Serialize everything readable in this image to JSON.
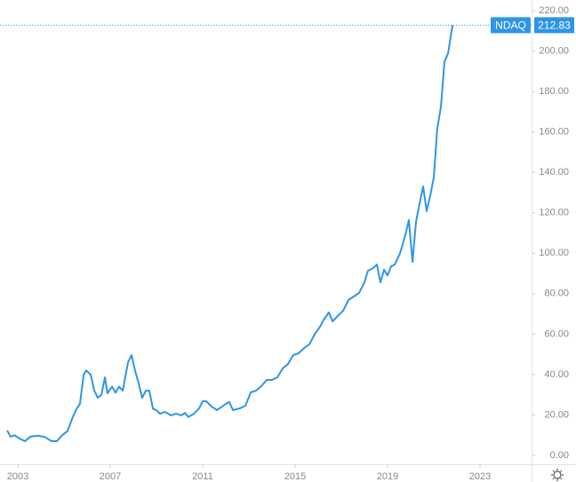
{
  "chart_data": {
    "type": "line",
    "x": [
      2002.54,
      2002.69,
      2002.85,
      2003.08,
      2003.31,
      2003.54,
      2003.85,
      2004.15,
      2004.46,
      2004.69,
      2004.92,
      2005.15,
      2005.38,
      2005.54,
      2005.69,
      2005.85,
      2005.96,
      2006.15,
      2006.31,
      2006.46,
      2006.62,
      2006.77,
      2006.88,
      2007.08,
      2007.23,
      2007.38,
      2007.54,
      2007.77,
      2007.92,
      2008.08,
      2008.23,
      2008.38,
      2008.54,
      2008.69,
      2008.85,
      2009.0,
      2009.15,
      2009.38,
      2009.62,
      2009.85,
      2010.08,
      2010.23,
      2010.38,
      2010.62,
      2010.85,
      2011.0,
      2011.15,
      2011.38,
      2011.62,
      2011.85,
      2012.0,
      2012.15,
      2012.31,
      2012.62,
      2012.85,
      2013.08,
      2013.31,
      2013.54,
      2013.77,
      2014.0,
      2014.23,
      2014.46,
      2014.69,
      2014.92,
      2015.15,
      2015.38,
      2015.62,
      2015.85,
      2016.08,
      2016.23,
      2016.46,
      2016.62,
      2016.85,
      2017.08,
      2017.31,
      2017.54,
      2017.77,
      2018.0,
      2018.15,
      2018.38,
      2018.54,
      2018.69,
      2018.85,
      2019.0,
      2019.15,
      2019.31,
      2019.54,
      2019.77,
      2019.92,
      2020.08,
      2020.23,
      2020.38,
      2020.54,
      2020.69,
      2020.85,
      2021.0,
      2021.15,
      2021.31,
      2021.46,
      2021.62,
      2021.81
    ],
    "series": [
      {
        "name": "NDAQ",
        "color": "#2f95e6",
        "values": [
          12.3,
          9.2,
          10,
          8.3,
          7,
          9.2,
          9.7,
          9.2,
          7,
          7,
          10,
          12,
          19,
          23,
          25.5,
          40,
          42,
          40,
          32,
          28.5,
          30,
          38.6,
          30.7,
          34,
          31,
          34,
          32,
          46,
          49.6,
          41.7,
          35.6,
          28.5,
          32,
          32,
          23,
          22.4,
          20.6,
          21.5,
          19.8,
          20.6,
          19.8,
          21,
          19,
          20.6,
          23.3,
          26.8,
          26.8,
          24.2,
          22.4,
          24.2,
          25.5,
          26.4,
          22.4,
          23.3,
          24.6,
          31.2,
          32,
          34.3,
          37.3,
          37.3,
          38.6,
          43,
          45.2,
          49.6,
          50.5,
          53,
          55,
          60,
          63.7,
          67,
          70.7,
          66.3,
          69,
          71.6,
          76.9,
          78.6,
          80.4,
          85.6,
          91.3,
          92.7,
          94.4,
          85.6,
          91.8,
          89,
          93.5,
          94.4,
          100,
          109,
          116.4,
          95.7,
          115.5,
          124.3,
          133,
          120.8,
          128.7,
          137.5,
          161.6,
          172.6,
          194.6,
          199,
          212.83
        ]
      }
    ],
    "xlim": [
      2002.23,
      2025.23
    ],
    "xticks": [
      2003,
      2007,
      2011,
      2015,
      2019,
      2023
    ],
    "ylim": [
      -4.39,
      225.27
    ],
    "yticks": [
      {
        "value": 0,
        "label": "0.00"
      },
      {
        "value": 20,
        "label": "20.00"
      },
      {
        "value": 40,
        "label": "40.00"
      },
      {
        "value": 60,
        "label": "60.00"
      },
      {
        "value": 80,
        "label": "80.00"
      },
      {
        "value": 100,
        "label": "100.00"
      },
      {
        "value": 120,
        "label": "120.00"
      },
      {
        "value": 140,
        "label": "140.00"
      },
      {
        "value": 160,
        "label": "160.00"
      },
      {
        "value": 180,
        "label": "180.00"
      },
      {
        "value": 200,
        "label": "200.00"
      },
      {
        "value": 220,
        "label": "220.00"
      }
    ],
    "grid": false
  }
}
